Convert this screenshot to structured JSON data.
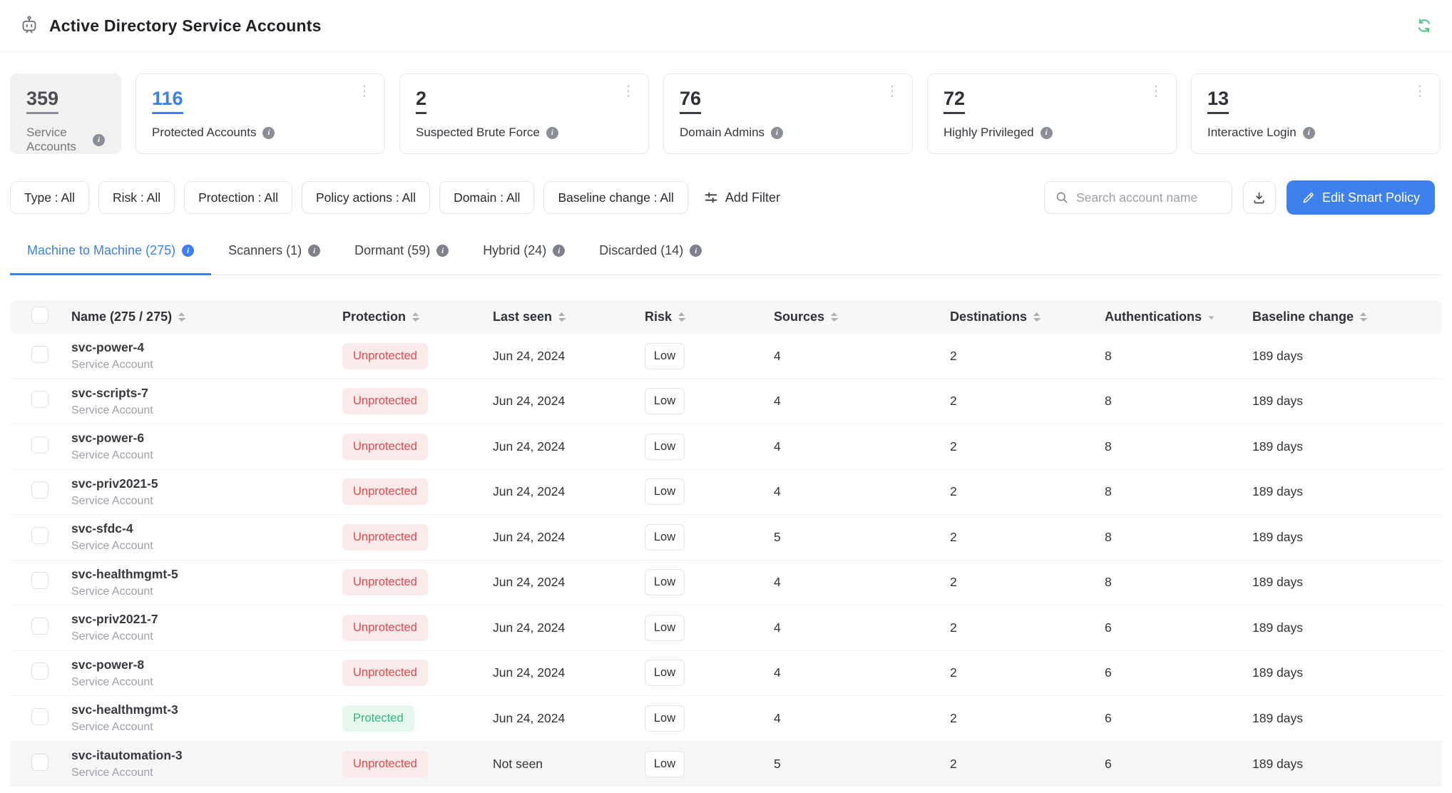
{
  "header": {
    "title": "Active Directory Service Accounts"
  },
  "colors": {
    "accent_blue": "#3e80ee",
    "danger_red": "#e5484d",
    "success_green": "#36b77b",
    "refresh_green": "#58c58c"
  },
  "stats": [
    {
      "value": "359",
      "label": "Service Accounts",
      "selected": true,
      "link": false,
      "menu": false
    },
    {
      "value": "116",
      "label": "Protected Accounts",
      "selected": false,
      "link": true,
      "menu": true
    },
    {
      "value": "2",
      "label": "Suspected Brute Force",
      "selected": false,
      "link": false,
      "menu": true
    },
    {
      "value": "76",
      "label": "Domain Admins",
      "selected": false,
      "link": false,
      "menu": true
    },
    {
      "value": "72",
      "label": "Highly Privileged",
      "selected": false,
      "link": false,
      "menu": true
    },
    {
      "value": "13",
      "label": "Interactive Login",
      "selected": false,
      "link": false,
      "menu": true
    }
  ],
  "filters": {
    "chips": [
      {
        "label": "Type : All"
      },
      {
        "label": "Risk : All"
      },
      {
        "label": "Protection : All"
      },
      {
        "label": "Policy actions : All"
      },
      {
        "label": "Domain : All"
      },
      {
        "label": "Baseline change : All"
      }
    ],
    "add_filter_label": "Add Filter",
    "search_placeholder": "Search account name",
    "edit_button_label": "Edit Smart Policy"
  },
  "tabs": [
    {
      "label": "Machine to Machine (275)",
      "active": true
    },
    {
      "label": "Scanners (1)",
      "active": false
    },
    {
      "label": "Dormant (59)",
      "active": false
    },
    {
      "label": "Hybrid (24)",
      "active": false
    },
    {
      "label": "Discarded (14)",
      "active": false
    }
  ],
  "table": {
    "columns": [
      {
        "label": "Name (275 / 275)",
        "sort": "updown"
      },
      {
        "label": "Protection",
        "sort": "updown"
      },
      {
        "label": "Last seen",
        "sort": "updown"
      },
      {
        "label": "Risk",
        "sort": "updown"
      },
      {
        "label": "Sources",
        "sort": "updown"
      },
      {
        "label": "Destinations",
        "sort": "updown"
      },
      {
        "label": "Authentications",
        "sort": "down"
      },
      {
        "label": "Baseline change",
        "sort": "updown"
      }
    ],
    "rows": [
      {
        "name": "svc-power-4",
        "type": "Service Account",
        "protection": "Unprotected",
        "last_seen": "Jun 24, 2024",
        "risk": "Low",
        "sources": "4",
        "destinations": "2",
        "authentications": "8",
        "baseline_change": "189 days"
      },
      {
        "name": "svc-scripts-7",
        "type": "Service Account",
        "protection": "Unprotected",
        "last_seen": "Jun 24, 2024",
        "risk": "Low",
        "sources": "4",
        "destinations": "2",
        "authentications": "8",
        "baseline_change": "189 days"
      },
      {
        "name": "svc-power-6",
        "type": "Service Account",
        "protection": "Unprotected",
        "last_seen": "Jun 24, 2024",
        "risk": "Low",
        "sources": "4",
        "destinations": "2",
        "authentications": "8",
        "baseline_change": "189 days"
      },
      {
        "name": "svc-priv2021-5",
        "type": "Service Account",
        "protection": "Unprotected",
        "last_seen": "Jun 24, 2024",
        "risk": "Low",
        "sources": "4",
        "destinations": "2",
        "authentications": "8",
        "baseline_change": "189 days"
      },
      {
        "name": "svc-sfdc-4",
        "type": "Service Account",
        "protection": "Unprotected",
        "last_seen": "Jun 24, 2024",
        "risk": "Low",
        "sources": "5",
        "destinations": "2",
        "authentications": "8",
        "baseline_change": "189 days"
      },
      {
        "name": "svc-healthmgmt-5",
        "type": "Service Account",
        "protection": "Unprotected",
        "last_seen": "Jun 24, 2024",
        "risk": "Low",
        "sources": "4",
        "destinations": "2",
        "authentications": "8",
        "baseline_change": "189 days"
      },
      {
        "name": "svc-priv2021-7",
        "type": "Service Account",
        "protection": "Unprotected",
        "last_seen": "Jun 24, 2024",
        "risk": "Low",
        "sources": "4",
        "destinations": "2",
        "authentications": "6",
        "baseline_change": "189 days"
      },
      {
        "name": "svc-power-8",
        "type": "Service Account",
        "protection": "Unprotected",
        "last_seen": "Jun 24, 2024",
        "risk": "Low",
        "sources": "4",
        "destinations": "2",
        "authentications": "6",
        "baseline_change": "189 days"
      },
      {
        "name": "svc-healthmgmt-3",
        "type": "Service Account",
        "protection": "Protected",
        "last_seen": "Jun 24, 2024",
        "risk": "Low",
        "sources": "4",
        "destinations": "2",
        "authentications": "6",
        "baseline_change": "189 days"
      },
      {
        "name": "svc-itautomation-3",
        "type": "Service Account",
        "protection": "Unprotected",
        "last_seen": "Not seen",
        "risk": "Low",
        "sources": "5",
        "destinations": "2",
        "authentications": "6",
        "baseline_change": "189 days"
      }
    ]
  }
}
